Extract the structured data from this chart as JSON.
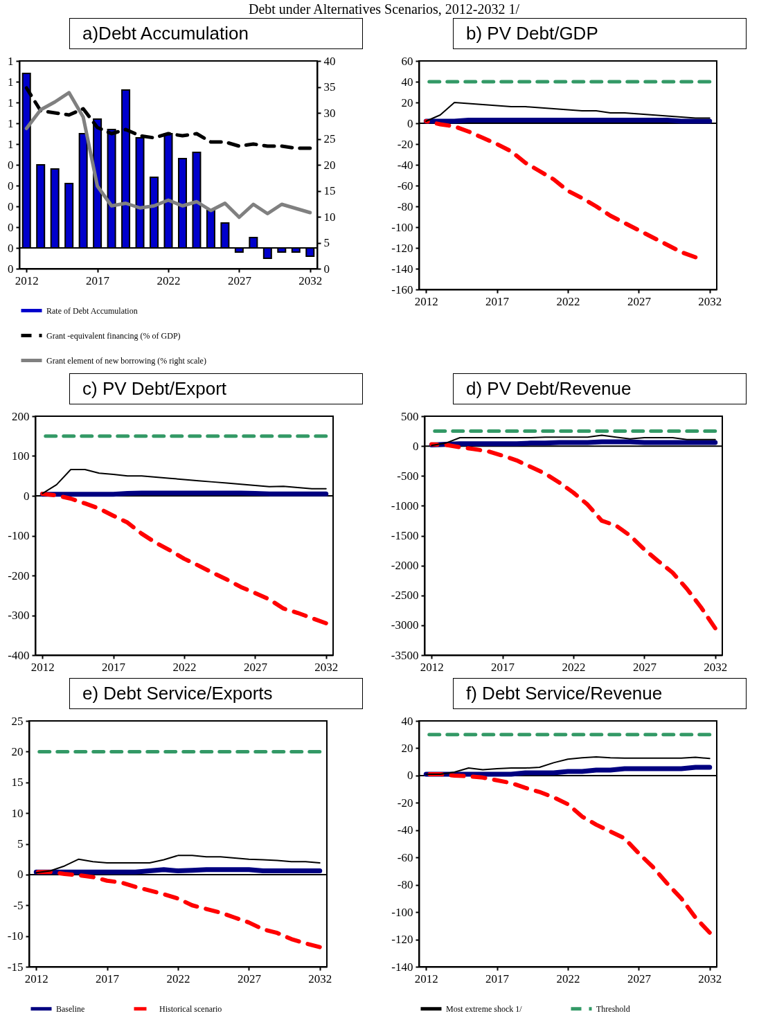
{
  "chart_data": [
    {
      "type": "bar",
      "title": "a)Debt Accumulation",
      "annotations": [
        "Debt under Alternatives Scenarios, 2012-2032 1/"
      ],
      "x": [
        2012,
        2013,
        2014,
        2015,
        2016,
        2017,
        2018,
        2019,
        2020,
        2021,
        2022,
        2023,
        2024,
        2025,
        2026,
        2027,
        2028,
        2029,
        2030,
        2031,
        2032
      ],
      "xlim": [
        2011.5,
        2032.5
      ],
      "xticks": [
        2012,
        2017,
        2022,
        2027,
        2032
      ],
      "ylim": [
        -0.1,
        0.9
      ],
      "yticks": [
        {
          "value": -0.1,
          "label": "0"
        },
        {
          "value": 0,
          "label": "0"
        },
        {
          "value": 0.1,
          "label": "0"
        },
        {
          "value": 0.2,
          "label": "0"
        },
        {
          "value": 0.3,
          "label": "0"
        },
        {
          "value": 0.4,
          "label": "0"
        },
        {
          "value": 0.5,
          "label": "1"
        },
        {
          "value": 0.6,
          "label": "1"
        },
        {
          "value": 0.7,
          "label": "1"
        },
        {
          "value": 0.8,
          "label": "1"
        },
        {
          "value": 0.9,
          "label": "1"
        }
      ],
      "y2lim": [
        0,
        40
      ],
      "y2ticks": [
        0,
        5,
        10,
        15,
        20,
        25,
        30,
        35,
        40
      ],
      "legend": "bottom",
      "ref_lines": [
        {
          "axis": "y",
          "value": 0,
          "color": "#000000"
        }
      ],
      "series": [
        {
          "name": "Rate of Debt Accumulation",
          "color": "#0000cc",
          "values": [
            0.84,
            0.4,
            0.38,
            0.31,
            0.55,
            0.62,
            0.57,
            0.76,
            0.53,
            0.34,
            0.55,
            0.43,
            0.46,
            0.18,
            0.12,
            -0.02,
            0.05,
            -0.05,
            -0.02,
            -0.02,
            -0.04
          ]
        },
        {
          "name": "Grant -equivalent financing (% of GDP)",
          "type": "line",
          "line_style": "dashed",
          "color": "#000000",
          "values": [
            0.77,
            0.66,
            0.65,
            0.64,
            0.67,
            0.58,
            0.55,
            0.57,
            0.54,
            0.53,
            0.55,
            0.54,
            0.55,
            0.51,
            0.51,
            0.49,
            0.5,
            0.49,
            0.49,
            0.48,
            0.48
          ]
        },
        {
          "name": "Grant element of new borrowing (% right scale)",
          "type": "line",
          "axis": "y2",
          "color": "#808080",
          "values": [
            27.0,
            30.6,
            32.1,
            33.9,
            29.2,
            15.9,
            12.1,
            12.6,
            11.7,
            12.1,
            13.2,
            12.1,
            12.9,
            11.2,
            12.6,
            9.9,
            12.4,
            10.6,
            12.4,
            11.6,
            10.8
          ]
        }
      ]
    },
    {
      "type": "line",
      "title": "b) PV Debt/GDP",
      "x": [
        2012,
        2013,
        2014,
        2015,
        2016,
        2017,
        2018,
        2019,
        2020,
        2021,
        2022,
        2023,
        2024,
        2025,
        2026,
        2027,
        2028,
        2029,
        2030,
        2031,
        2032
      ],
      "xlim": [
        2011.5,
        2032.5
      ],
      "xticks": [
        2012,
        2017,
        2022,
        2027,
        2032
      ],
      "ylim": [
        -160,
        60
      ],
      "yticks": [
        -160,
        -140,
        -120,
        -100,
        -80,
        -60,
        -40,
        -20,
        0,
        20,
        40,
        60
      ],
      "ref_lines": [
        {
          "axis": "y",
          "value": 0,
          "color": "#000000"
        }
      ],
      "series": [
        {
          "color": "#000080",
          "values": [
            2,
            2,
            2,
            3,
            3,
            3,
            3,
            3,
            3,
            3,
            3,
            3,
            3,
            3,
            3,
            3,
            3,
            3,
            2,
            2,
            2
          ]
        },
        {
          "color": "#ff0000",
          "line_style": "dashed",
          "values": [
            2,
            -1,
            -3,
            -8,
            -14,
            -20,
            -27,
            -38,
            -46,
            -54,
            -65,
            -72,
            -80,
            -89,
            -96,
            -103,
            -110,
            -117,
            -124,
            -129,
            null
          ]
        },
        {
          "color": "#000000",
          "values": [
            2,
            8,
            20,
            19,
            18,
            17,
            16,
            16,
            15,
            14,
            13,
            12,
            12,
            10,
            10,
            9,
            8,
            7,
            6,
            5,
            5
          ]
        },
        {
          "color": "#339966",
          "line_style": "dashed",
          "values": [
            40,
            40,
            40,
            40,
            40,
            40,
            40,
            40,
            40,
            40,
            40,
            40,
            40,
            40,
            40,
            40,
            40,
            40,
            40,
            40,
            40
          ]
        }
      ]
    },
    {
      "type": "line",
      "title": "c) PV Debt/Export",
      "x": [
        2012,
        2013,
        2014,
        2015,
        2016,
        2017,
        2018,
        2019,
        2020,
        2021,
        2022,
        2023,
        2024,
        2025,
        2026,
        2027,
        2028,
        2029,
        2030,
        2031,
        2032
      ],
      "xlim": [
        2011.5,
        2032.5
      ],
      "xticks": [
        2012,
        2017,
        2022,
        2027,
        2032
      ],
      "ylim": [
        -400,
        200
      ],
      "yticks": [
        -400,
        -300,
        -200,
        -100,
        0,
        100,
        200
      ],
      "ref_lines": [
        {
          "axis": "y",
          "value": 0,
          "color": "#000000"
        }
      ],
      "series": [
        {
          "color": "#000080",
          "values": [
            4,
            4,
            4,
            4,
            4,
            4,
            6,
            7,
            7,
            7,
            7,
            7,
            7,
            7,
            7,
            6,
            5,
            5,
            5,
            5,
            5
          ]
        },
        {
          "color": "#ff0000",
          "line_style": "dashed",
          "values": [
            5,
            1,
            -7,
            -19,
            -32,
            -50,
            -67,
            -95,
            -118,
            -137,
            -158,
            -175,
            -193,
            -210,
            -229,
            -244,
            -260,
            -283,
            -294,
            -307,
            -320
          ]
        },
        {
          "color": "#000000",
          "values": [
            6,
            28,
            66,
            66,
            57,
            54,
            50,
            50,
            47,
            44,
            41,
            38,
            35,
            32,
            29,
            26,
            23,
            24,
            21,
            18,
            18
          ]
        },
        {
          "color": "#339966",
          "line_style": "dashed",
          "values": [
            150,
            150,
            150,
            150,
            150,
            150,
            150,
            150,
            150,
            150,
            150,
            150,
            150,
            150,
            150,
            150,
            150,
            150,
            150,
            150,
            150
          ]
        }
      ]
    },
    {
      "type": "line",
      "title": "d) PV Debt/Revenue",
      "x": [
        2012,
        2013,
        2014,
        2015,
        2016,
        2017,
        2018,
        2019,
        2020,
        2021,
        2022,
        2023,
        2024,
        2025,
        2026,
        2027,
        2028,
        2029,
        2030,
        2031,
        2032
      ],
      "xlim": [
        2011.5,
        2032.5
      ],
      "xticks": [
        2012,
        2017,
        2022,
        2027,
        2032
      ],
      "ylim": [
        -3500,
        500
      ],
      "yticks": [
        -3500,
        -3000,
        -2500,
        -2000,
        -1500,
        -1000,
        -500,
        0,
        500
      ],
      "ref_lines": [
        {
          "axis": "y",
          "value": 0,
          "color": "#000000"
        }
      ],
      "series": [
        {
          "color": "#000080",
          "values": [
            20,
            30,
            40,
            40,
            40,
            40,
            40,
            50,
            50,
            60,
            60,
            60,
            70,
            70,
            70,
            60,
            60,
            60,
            60,
            60,
            60
          ]
        },
        {
          "color": "#ff0000",
          "line_style": "dashed",
          "values": [
            30,
            20,
            -20,
            -50,
            -90,
            -160,
            -240,
            -350,
            -460,
            -610,
            -780,
            -980,
            -1250,
            -1330,
            -1500,
            -1730,
            -1930,
            -2120,
            -2390,
            -2700,
            -3050
          ]
        },
        {
          "color": "#000000",
          "values": [
            10,
            50,
            140,
            140,
            140,
            140,
            140,
            140,
            150,
            150,
            150,
            150,
            180,
            150,
            120,
            140,
            140,
            140,
            110,
            110,
            110
          ]
        },
        {
          "color": "#339966",
          "line_style": "dashed",
          "values": [
            250,
            250,
            250,
            250,
            250,
            250,
            250,
            250,
            250,
            250,
            250,
            250,
            250,
            250,
            250,
            250,
            250,
            250,
            250,
            250,
            250
          ]
        }
      ]
    },
    {
      "type": "line",
      "title": "e) Debt Service/Exports",
      "x": [
        2012,
        2013,
        2014,
        2015,
        2016,
        2017,
        2018,
        2019,
        2020,
        2021,
        2022,
        2023,
        2024,
        2025,
        2026,
        2027,
        2028,
        2029,
        2030,
        2031,
        2032
      ],
      "xlim": [
        2011.5,
        2032.5
      ],
      "xticks": [
        2012,
        2017,
        2022,
        2027,
        2032
      ],
      "ylim": [
        -15,
        25
      ],
      "yticks": [
        -15,
        -10,
        -5,
        0,
        5,
        10,
        15,
        20,
        25
      ],
      "legend": "bottom",
      "ref_lines": [
        {
          "axis": "y",
          "value": 0,
          "color": "#000000"
        }
      ],
      "series": [
        {
          "name": "Baseline",
          "color": "#000080",
          "values": [
            0.4,
            0.4,
            0.4,
            0.4,
            0.4,
            0.4,
            0.4,
            0.4,
            0.6,
            0.8,
            0.6,
            0.7,
            0.8,
            0.8,
            0.8,
            0.8,
            0.6,
            0.6,
            0.6,
            0.6,
            0.6
          ]
        },
        {
          "name": "Historical scenario",
          "color": "#ff0000",
          "line_style": "dashed",
          "values": [
            0.4,
            0.4,
            0.1,
            -0.1,
            -0.4,
            -1.0,
            -1.3,
            -2.0,
            -2.6,
            -3.2,
            -3.9,
            -5.0,
            -5.6,
            -6.2,
            -7.0,
            -7.8,
            -8.9,
            -9.5,
            -10.5,
            -11.2,
            -11.8
          ]
        },
        {
          "color": "#000000",
          "values": [
            0.3,
            0.6,
            1.4,
            2.5,
            2.1,
            1.9,
            1.9,
            1.9,
            1.9,
            2.4,
            3.1,
            3.1,
            2.9,
            2.9,
            2.7,
            2.5,
            2.4,
            2.3,
            2.1,
            2.1,
            1.9
          ]
        },
        {
          "color": "#339966",
          "line_style": "dashed",
          "values": [
            20,
            20,
            20,
            20,
            20,
            20,
            20,
            20,
            20,
            20,
            20,
            20,
            20,
            20,
            20,
            20,
            20,
            20,
            20,
            20,
            20
          ]
        }
      ]
    },
    {
      "type": "line",
      "title": "f) Debt Service/Revenue",
      "x": [
        2012,
        2013,
        2014,
        2015,
        2016,
        2017,
        2018,
        2019,
        2020,
        2021,
        2022,
        2023,
        2024,
        2025,
        2026,
        2027,
        2028,
        2029,
        2030,
        2031,
        2032
      ],
      "xlim": [
        2011.5,
        2032.5
      ],
      "xticks": [
        2012,
        2017,
        2022,
        2027,
        2032
      ],
      "ylim": [
        -140,
        40
      ],
      "yticks": [
        -140,
        -120,
        -100,
        -80,
        -60,
        -40,
        -20,
        0,
        20,
        40
      ],
      "legend": "bottom",
      "ref_lines": [
        {
          "axis": "y",
          "value": 0,
          "color": "#000000"
        }
      ],
      "series": [
        {
          "color": "#000080",
          "values": [
            1,
            1,
            1,
            1,
            1,
            1,
            1,
            2,
            2,
            2,
            3,
            3,
            4,
            4,
            5,
            5,
            5,
            5,
            5,
            6,
            6
          ]
        },
        {
          "color": "#ff0000",
          "line_style": "dashed",
          "values": [
            1,
            1,
            0,
            -0.5,
            -1.5,
            -3.5,
            -5.5,
            -9,
            -12,
            -16,
            -21,
            -30,
            -36,
            -41,
            -46,
            -57,
            -67,
            -79,
            -90,
            -104,
            -115
          ]
        },
        {
          "name": "Most extreme shock 1/",
          "color": "#000000",
          "values": [
            1,
            1,
            2.5,
            5.5,
            4.2,
            5,
            5.5,
            5.5,
            6,
            9.4,
            12,
            13,
            13.6,
            13,
            12.7,
            12.7,
            12.7,
            12.7,
            12.7,
            13.4,
            12.5
          ]
        },
        {
          "name": "Threshold",
          "color": "#339966",
          "line_style": "dashed",
          "values": [
            30,
            30,
            30,
            30,
            30,
            30,
            30,
            30,
            30,
            30,
            30,
            30,
            30,
            30,
            30,
            30,
            30,
            30,
            30,
            30,
            30
          ]
        }
      ]
    }
  ]
}
